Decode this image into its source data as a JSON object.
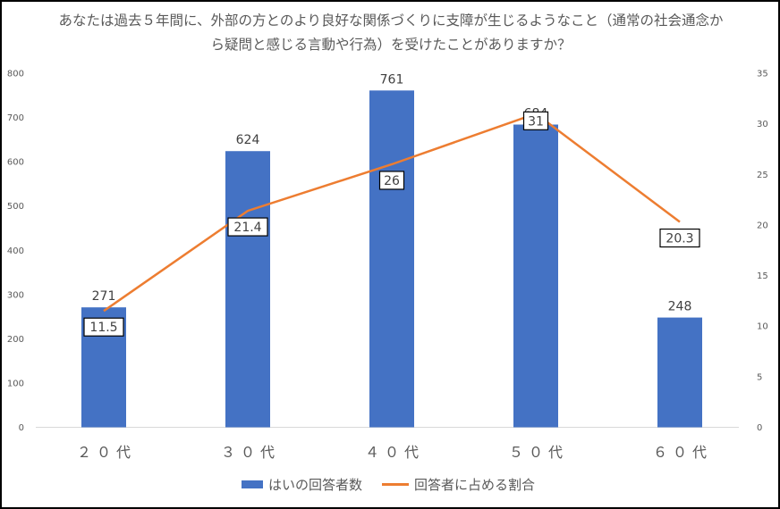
{
  "chart_data": {
    "type": "bar+line",
    "title": "あなたは過去５年間に、外部の方とのより良好な関係づくりに支障が生じるようなこと（通常の社会通念から疑問と感じる言動や行為）を受けたことがありますか？",
    "categories": [
      "２０代",
      "３０代",
      "４０代",
      "５０代",
      "６０代"
    ],
    "series": [
      {
        "name": "はいの回答者数",
        "type": "bar",
        "axis": "left",
        "values": [
          271,
          624,
          761,
          684,
          248
        ],
        "color": "#4472C4"
      },
      {
        "name": "回答者に占める割合",
        "type": "line",
        "axis": "right",
        "values": [
          11.5,
          21.4,
          26,
          31,
          20.3
        ],
        "color": "#ED7D31"
      }
    ],
    "ylim_left": [
      0,
      800
    ],
    "yticks_left": [
      "0",
      "100",
      "200",
      "300",
      "400",
      "500",
      "600",
      "700",
      "800"
    ],
    "ylim_right": [
      0,
      35
    ],
    "yticks_right": [
      "0",
      "5",
      "10",
      "15",
      "20",
      "25",
      "30",
      "35"
    ],
    "bar_labels": [
      "271",
      "624",
      "761",
      "684",
      "248"
    ],
    "line_labels": [
      "11.5",
      "21.4",
      "26",
      "31",
      "20.3"
    ],
    "grid": false,
    "legend_position": "bottom"
  }
}
